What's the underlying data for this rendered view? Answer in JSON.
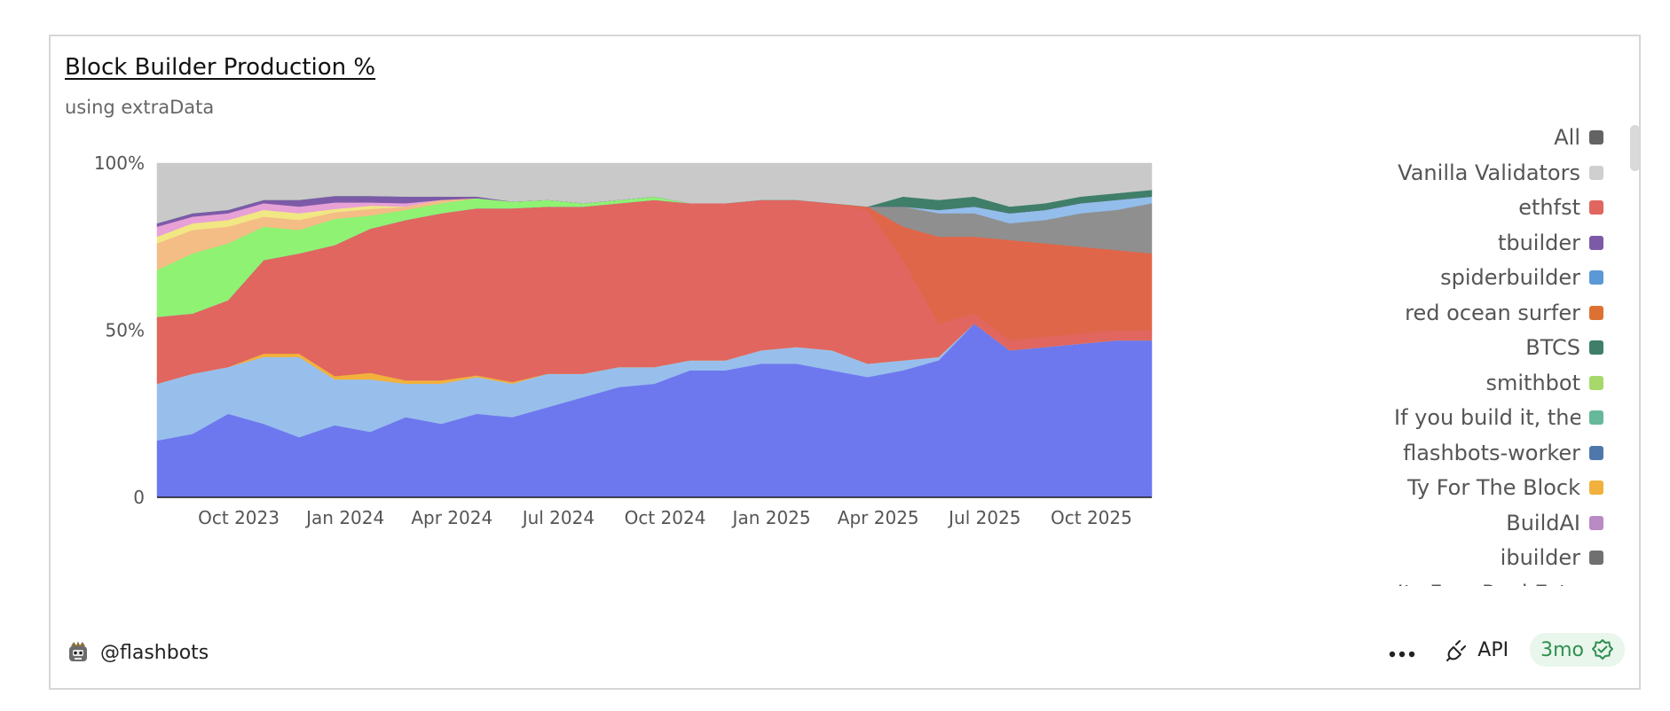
{
  "card": {
    "title": "Block Builder Production %",
    "subtitle": "using extraData",
    "owner": "@flashbots",
    "api_label": "API",
    "refresh_label": "3mo",
    "owner_icon": "robot-avatar-icon",
    "more_icon": "more-dots-icon",
    "api_icon": "plug-icon",
    "refresh_icon": "check-badge-icon"
  },
  "chart_data": {
    "type": "area",
    "stacked": true,
    "percent": true,
    "x": [
      "2023-08",
      "2023-09",
      "2023-10",
      "2023-11",
      "2023-12",
      "2024-01",
      "2024-02",
      "2024-03",
      "2024-04",
      "2024-05",
      "2024-06",
      "2024-07",
      "2024-08",
      "2024-09",
      "2024-10",
      "2024-11",
      "2024-12",
      "2025-01",
      "2025-02",
      "2025-03",
      "2025-04",
      "2025-05",
      "2025-06",
      "2025-07",
      "2025-08",
      "2025-09",
      "2025-10",
      "2025-11",
      "2025-12"
    ],
    "x_tick_labels": [
      "Oct 2023",
      "Jan 2024",
      "Apr 2024",
      "Jul 2024",
      "Oct 2024",
      "Jan 2025",
      "Apr 2025",
      "Jul 2025",
      "Oct 2025"
    ],
    "x_tick_index": [
      2,
      5,
      8,
      11,
      14,
      17,
      20,
      23,
      26
    ],
    "y_tick_labels": [
      "0",
      "50%",
      "100%"
    ],
    "y_tick_values": [
      0,
      50,
      100
    ],
    "ylim": [
      0,
      100
    ],
    "grid": false,
    "legend_position": "right",
    "series": [
      {
        "color": "#6e78ee",
        "values": [
          17,
          19,
          25,
          22,
          18,
          22,
          20,
          24,
          22,
          25,
          24,
          27,
          30,
          33,
          34,
          38,
          38,
          40,
          40,
          38,
          36,
          38,
          41,
          52,
          44,
          45,
          46,
          47,
          47
        ]
      },
      {
        "color": "#98bfec",
        "values": [
          17,
          18,
          14,
          20,
          24,
          14,
          16,
          10,
          12,
          11,
          10,
          10,
          7,
          6,
          5,
          3,
          3,
          4,
          5,
          6,
          4,
          3,
          1,
          0,
          0,
          0,
          0,
          0,
          0
        ]
      },
      {
        "color": "#f2b13c",
        "values": [
          0,
          0,
          0,
          1,
          1,
          1,
          2,
          1,
          1,
          0.5,
          0.5,
          0,
          0,
          0,
          0,
          0,
          0,
          0,
          0,
          0,
          0,
          0,
          0,
          0,
          0,
          0,
          0,
          0,
          0
        ]
      },
      {
        "color": "#e0665f",
        "values": [
          20,
          18,
          20,
          28,
          30,
          40,
          44,
          48,
          50,
          50,
          52,
          50,
          50,
          49,
          50,
          47,
          47,
          45,
          44,
          44,
          46,
          30,
          10,
          3,
          3,
          3,
          3,
          3,
          3
        ]
      },
      {
        "color": "#e0664a",
        "values": [
          0,
          0,
          0,
          0,
          0,
          0,
          0,
          0,
          0,
          0,
          0,
          0,
          0,
          0,
          0,
          0,
          0,
          0,
          0,
          0,
          1,
          10,
          26,
          23,
          30,
          28,
          26,
          24,
          23
        ]
      },
      {
        "color": "#8f8f8f",
        "values": [
          0,
          0,
          0,
          0,
          0,
          0,
          0,
          0,
          0,
          0,
          0,
          0,
          0,
          0,
          0,
          0,
          0,
          0,
          0,
          0,
          0,
          6,
          7,
          7,
          5,
          7,
          10,
          12,
          15
        ]
      },
      {
        "color": "#93bdeb",
        "values": [
          0,
          0,
          0,
          0,
          0,
          0,
          0,
          0,
          0,
          0,
          0,
          0,
          0,
          0,
          0,
          0,
          0,
          0,
          0,
          0,
          0,
          0,
          1,
          2,
          3,
          3,
          3,
          3,
          2
        ]
      },
      {
        "color": "#8ff272",
        "values": [
          14,
          18,
          17,
          10,
          7,
          8,
          4,
          3,
          3,
          3,
          2,
          2,
          1,
          1,
          1,
          0,
          0,
          0,
          0,
          0,
          0,
          0,
          0,
          0,
          0,
          0,
          0,
          0,
          0
        ]
      },
      {
        "color": "#f4bd86",
        "values": [
          8,
          7,
          5,
          3,
          3,
          2,
          2,
          1,
          1,
          0,
          0,
          0,
          0,
          0,
          0,
          0,
          0,
          0,
          0,
          0,
          0,
          0,
          0,
          0,
          0,
          0,
          0,
          0,
          0
        ]
      },
      {
        "color": "#f1e783",
        "values": [
          2,
          2,
          2,
          2,
          2,
          1,
          1,
          0,
          0,
          0,
          0,
          0,
          0,
          0,
          0,
          0,
          0,
          0,
          0,
          0,
          0,
          0,
          0,
          0,
          0,
          0,
          0,
          0,
          0
        ]
      },
      {
        "color": "#e7a1d6",
        "values": [
          3,
          2,
          2,
          2,
          2,
          2,
          1,
          1,
          0,
          0,
          0,
          0,
          0,
          0,
          0,
          0,
          0,
          0,
          0,
          0,
          0,
          0,
          0,
          0,
          0,
          0,
          0,
          0,
          0
        ]
      },
      {
        "color": "#7c5aa8",
        "values": [
          1,
          1,
          1,
          1,
          2,
          2,
          2,
          2,
          1,
          0.5,
          0,
          0,
          0,
          0,
          0,
          0,
          0,
          0,
          0,
          0,
          0,
          0,
          0,
          0,
          0,
          0,
          0,
          0,
          0
        ]
      },
      {
        "color": "#3f7f6a",
        "values": [
          0,
          0,
          0,
          0,
          0,
          0,
          0,
          0,
          0,
          0,
          0,
          0,
          0,
          0,
          0,
          0,
          0,
          0,
          0,
          0,
          0,
          3,
          3,
          3,
          2,
          2,
          2,
          2,
          2
        ]
      },
      {
        "color": "#c9c9c9",
        "values": [
          18,
          15,
          14,
          11,
          11,
          10,
          10,
          10,
          10,
          10,
          11.5,
          11,
          12,
          11,
          10,
          12,
          12,
          11,
          11,
          12,
          13,
          10,
          11,
          10,
          13,
          12,
          10,
          9,
          8
        ]
      }
    ],
    "legend": [
      {
        "label": "All",
        "color": "#636363"
      },
      {
        "label": "Vanilla Validators",
        "color": "#cfcfcf"
      },
      {
        "label": "ethfst",
        "color": "#e0665f"
      },
      {
        "label": "tbuilder",
        "color": "#7c5aa8"
      },
      {
        "label": "spiderbuilder",
        "color": "#5b98d6"
      },
      {
        "label": "red ocean surfer",
        "color": "#dd7132"
      },
      {
        "label": "BTCS",
        "color": "#3f7f6a"
      },
      {
        "label": "smithbot",
        "color": "#a7d86a"
      },
      {
        "label": "If you build it, the",
        "color": "#66b89a"
      },
      {
        "label": "flashbots-worker",
        "color": "#4e78ac"
      },
      {
        "label": "Ty For The Block",
        "color": "#f2b13c"
      },
      {
        "label": "BuildAI",
        "color": "#b98ac4"
      },
      {
        "label": "ibuilder",
        "color": "#707070"
      },
      {
        "label": "Its Free Real Esta",
        "color": "#ef9a5a"
      }
    ]
  }
}
